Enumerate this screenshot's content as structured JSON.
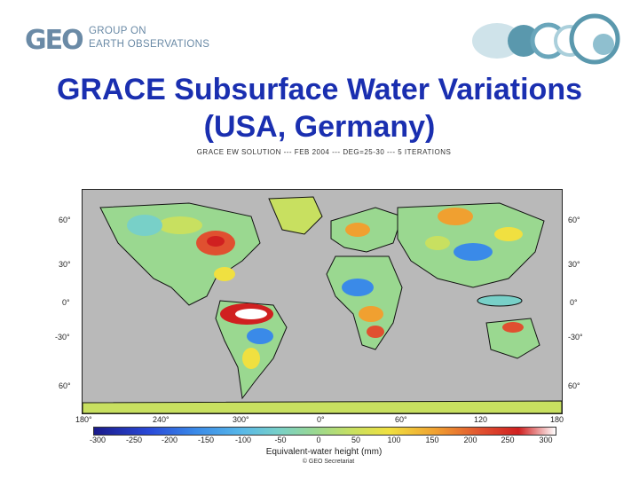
{
  "header": {
    "logo_mark": "GEO",
    "logo_line1": "GROUP ON",
    "logo_line2": "EARTH OBSERVATIONS"
  },
  "slide": {
    "title_line1": "GRACE Subsurface Water Variations",
    "title_line2": "(USA, Germany)"
  },
  "map": {
    "caption": "GRACE EW SOLUTION --- FEB 2004 --- DEG=25-30 --- 5 ITERATIONS",
    "lat_labels_left": [
      "60°",
      "30°",
      "0°",
      "-30°",
      "60°"
    ],
    "lat_labels_right": [
      "60°",
      "30°",
      "0°",
      "-30°",
      "60°"
    ],
    "lon_labels": [
      "180°",
      "240°",
      "300°",
      "0°",
      "60°",
      "120",
      "180"
    ],
    "colorbar_ticks": [
      "-300",
      "-250",
      "-200",
      "-150",
      "-100",
      "-50",
      "0",
      "50",
      "100",
      "150",
      "200",
      "250",
      "300"
    ],
    "colorbar_label": "Equivalent-water height (mm)",
    "colors": {
      "ocean": "#b9b9b9",
      "dry": "#3a78d8",
      "neutral": "#8fd08a",
      "wet": "#e03020"
    }
  },
  "footer": {
    "credit": "© GEO Secretariat"
  }
}
